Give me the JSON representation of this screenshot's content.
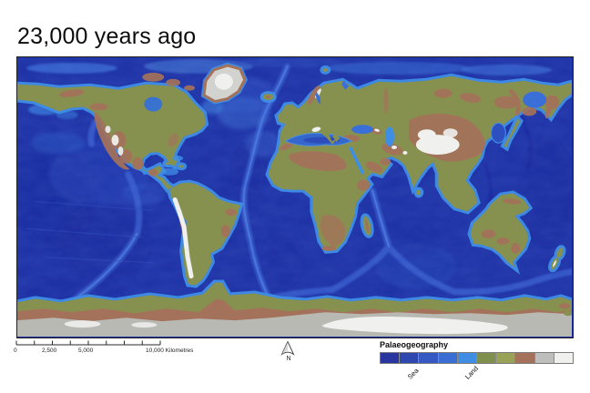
{
  "title": "23,000 years ago",
  "scalebar": {
    "labels": [
      "0",
      "2,500",
      "5,000"
    ],
    "end_label": "10,000 Kilometres"
  },
  "north_arrow": {
    "label": "N"
  },
  "legend": {
    "title": "Palaeogeography",
    "sea_label": "Sea",
    "land_label": "Land",
    "swatches": [
      {
        "name": "sea-deepest",
        "color": "#2a36a0"
      },
      {
        "name": "sea-deep",
        "color": "#2f48b0"
      },
      {
        "name": "sea-mid",
        "color": "#3558c2"
      },
      {
        "name": "sea-shallow",
        "color": "#3a6ed2"
      },
      {
        "name": "sea-shelf",
        "color": "#3f8ee4"
      },
      {
        "name": "land-low",
        "color": "#7f8f4e"
      },
      {
        "name": "land-mid",
        "color": "#9aa258"
      },
      {
        "name": "land-high",
        "color": "#a4725a"
      },
      {
        "name": "ice-gray",
        "color": "#bebebc"
      },
      {
        "name": "ice-white",
        "color": "#f0f0ee"
      }
    ]
  },
  "map_colors": {
    "ocean_deep": "#1d31a5",
    "land": "#87914f",
    "mountains": "#a4725a",
    "ice": "#f0f0ee",
    "shelf_sea": "#3f8ee6",
    "antarctic_gray": "#b9b9b4",
    "greenland_gray": "#d2d2ce"
  }
}
